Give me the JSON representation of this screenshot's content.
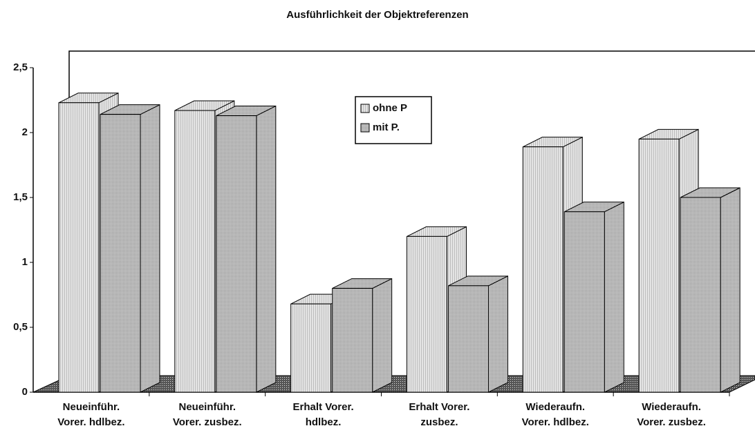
{
  "chart_data": {
    "type": "bar3d",
    "title": "Ausführlichkeit der Objektreferenzen",
    "categories": [
      "Neueinführ.\nVorer. hdlbez.",
      "Neueinführ.\nVorer. zusbez.",
      "Erhalt Vorer.\nhdlbez.",
      "Erhalt Vorer.\nzusbez.",
      "Wiederaufn.\nVorer. hdlbez.",
      "Wiederaufn.\nVorer. zusbez."
    ],
    "series": [
      {
        "name": "ohne P",
        "color": "#dcdcdc",
        "values": [
          2.23,
          2.17,
          0.68,
          1.2,
          1.89,
          1.95
        ]
      },
      {
        "name": "mit P.",
        "color": "#b9b9b9",
        "values": [
          2.14,
          2.13,
          0.8,
          0.82,
          1.39,
          1.5
        ]
      }
    ],
    "ylim": [
      0,
      2.5
    ],
    "yticks": [
      0,
      {
        "value": 0.5,
        "label": "0,5"
      },
      1,
      {
        "value": 1.5,
        "label": "1,5"
      },
      2,
      {
        "value": 2.5,
        "label": "2,5"
      }
    ],
    "legend": "top-center"
  }
}
